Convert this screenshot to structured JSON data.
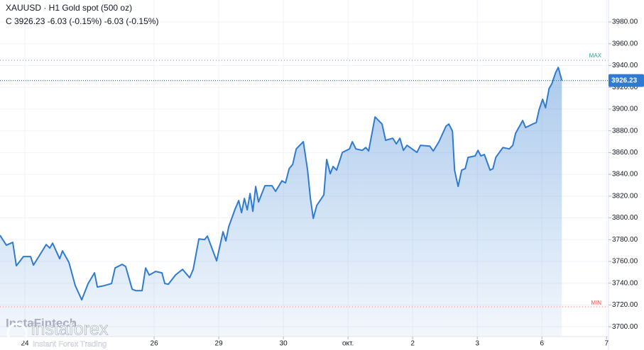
{
  "chart_data": {
    "type": "area",
    "title": "XAUUSD · H1 Gold spot (500 oz)",
    "subtitle": "C 3926.23 -6.03 (-0.15%) -6.03 (-0.15%)",
    "color": "#2f7bd1",
    "grid": true,
    "xlim": [
      -0.385,
      9.03
    ],
    "ylim": [
      3691,
      4000.2
    ],
    "xticks": [
      {
        "value": 0,
        "label": "24"
      },
      {
        "value": 2,
        "label": "26"
      },
      {
        "value": 3,
        "label": "29"
      },
      {
        "value": 4,
        "label": "30"
      },
      {
        "value": 5,
        "label": "окт."
      },
      {
        "value": 6,
        "label": "2"
      },
      {
        "value": 7,
        "label": "3"
      },
      {
        "value": 8,
        "label": "6"
      },
      {
        "value": 9,
        "label": "7"
      }
    ],
    "yticks": [
      {
        "value": 3700,
        "label": "3700.00"
      },
      {
        "value": 3720,
        "label": "3720.00"
      },
      {
        "value": 3740,
        "label": "3740.00"
      },
      {
        "value": 3760,
        "label": "3760.00"
      },
      {
        "value": 3780,
        "label": "3780.00"
      },
      {
        "value": 3800,
        "label": "3800.00"
      },
      {
        "value": 3820,
        "label": "3820.00"
      },
      {
        "value": 3840,
        "label": "3840.00"
      },
      {
        "value": 3860,
        "label": "3860.00"
      },
      {
        "value": 3880,
        "label": "3880.00"
      },
      {
        "value": 3900,
        "label": "3900.00"
      },
      {
        "value": 3920,
        "label": "3920.00"
      },
      {
        "value": 3940,
        "label": "3940.00"
      },
      {
        "value": 3960,
        "label": "3960.00"
      },
      {
        "value": 3980,
        "label": "3980.00"
      }
    ],
    "last_price": {
      "value": 3926.23,
      "label": "3926.23"
    },
    "max_line": {
      "value": 3944.8,
      "label": "MAX"
    },
    "min_line": {
      "value": 3718.3,
      "label": "MIN"
    },
    "watermark": {
      "brand": "instaforex",
      "slogan": "Instant Forex Trading",
      "behind": "InstaFintech"
    },
    "x": [
      -0.385,
      -0.286,
      -0.187,
      -0.132,
      -0.022,
      0.088,
      0.132,
      0.242,
      0.33,
      0.385,
      0.429,
      0.538,
      0.582,
      0.681,
      0.78,
      0.879,
      0.978,
      1.077,
      1.121,
      1.231,
      1.341,
      1.396,
      1.505,
      1.56,
      1.659,
      1.714,
      1.813,
      1.868,
      1.923,
      2.022,
      2.121,
      2.165,
      2.22,
      2.33,
      2.44,
      2.549,
      2.604,
      2.692,
      2.78,
      2.824,
      2.967,
      3.066,
      3.11,
      3.154,
      3.253,
      3.308,
      3.352,
      3.396,
      3.44,
      3.484,
      3.527,
      3.571,
      3.615,
      3.714,
      3.824,
      3.879,
      3.978,
      4.033,
      4.088,
      4.143,
      4.198,
      4.308,
      4.374,
      4.418,
      4.462,
      4.516,
      4.626,
      4.67,
      4.725,
      4.769,
      4.824,
      4.912,
      5.022,
      5.066,
      5.121,
      5.22,
      5.275,
      5.319,
      5.418,
      5.527,
      5.582,
      5.692,
      5.747,
      5.802,
      5.857,
      5.912,
      6.022,
      6.066,
      6.121,
      6.264,
      6.319,
      6.407,
      6.516,
      6.56,
      6.615,
      6.648,
      6.703,
      6.758,
      6.813,
      6.857,
      6.967,
      7.011,
      7.055,
      7.11,
      7.198,
      7.242,
      7.286,
      7.396,
      7.495,
      7.549,
      7.593,
      7.703,
      7.747,
      7.857,
      7.912,
      7.956,
      8.011,
      8.055,
      8.11,
      8.154,
      8.209,
      8.253,
      8.308
    ],
    "values": [
      3784.0,
      3774.9,
      3777.5,
      3756.0,
      3764.5,
      3764.5,
      3756.6,
      3767.1,
      3775.5,
      3772.3,
      3776.8,
      3762.5,
      3769.7,
      3759.3,
      3737.8,
      3724.7,
      3739.7,
      3749.5,
      3736.5,
      3737.8,
      3739.7,
      3754.0,
      3757.3,
      3755.4,
      3734.5,
      3733.2,
      3733.2,
      3754.0,
      3747.5,
      3750.8,
      3749.5,
      3739.7,
      3739.1,
      3747.5,
      3752.7,
      3745.0,
      3752.7,
      3780.7,
      3780.1,
      3783.3,
      3760.6,
      3787.3,
      3778.8,
      3791.8,
      3808.1,
      3815.9,
      3804.8,
      3817.9,
      3807.4,
      3822.4,
      3806.1,
      3828.9,
      3814.6,
      3829.6,
      3829.6,
      3824.4,
      3834.1,
      3832.2,
      3845.2,
      3849.1,
      3863.4,
      3870.0,
      3843.9,
      3817.9,
      3799.6,
      3811.4,
      3821.1,
      3853.7,
      3840.6,
      3847.2,
      3843.9,
      3860.2,
      3863.4,
      3870.0,
      3863.4,
      3862.1,
      3864.7,
      3861.5,
      3892.7,
      3886.2,
      3871.3,
      3873.2,
      3868.0,
      3873.2,
      3862.1,
      3866.7,
      3862.1,
      3860.2,
      3866.7,
      3866.0,
      3861.5,
      3870.0,
      3884.3,
      3886.2,
      3879.7,
      3843.9,
      3828.9,
      3843.9,
      3845.2,
      3855.6,
      3856.9,
      3862.1,
      3856.9,
      3858.2,
      3843.9,
      3845.2,
      3855.6,
      3864.7,
      3863.4,
      3866.7,
      3877.8,
      3889.5,
      3883.0,
      3886.2,
      3887.5,
      3899.3,
      3909.0,
      3901.2,
      3918.8,
      3923.4,
      3933.1,
      3938.3,
      3926.23
    ]
  }
}
